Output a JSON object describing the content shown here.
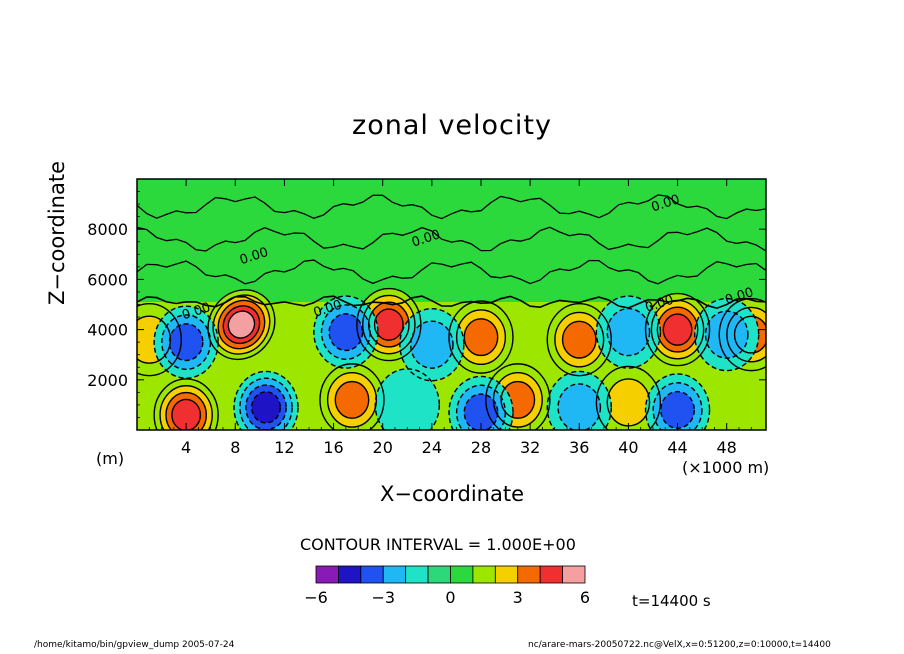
{
  "chart_data": {
    "type": "heatmap",
    "title": "zonal velocity",
    "xlabel": "X−coordinate",
    "ylabel": "Z−coordinate",
    "x_unit_label": "(×1000 m)",
    "y_unit_label": "(m)",
    "xlim": [
      0,
      51.2
    ],
    "ylim": [
      0,
      10000
    ],
    "x_ticks": [
      4,
      8,
      12,
      16,
      20,
      24,
      28,
      32,
      36,
      40,
      44,
      48
    ],
    "y_ticks": [
      2000,
      4000,
      6000,
      8000
    ],
    "contour_interval_label": "CONTOUR INTERVAL = 1.000E+00",
    "contour_labels": [
      "0.00"
    ],
    "colorbar": {
      "ticks": [
        -6,
        -3,
        0,
        3,
        6
      ],
      "tick_labels": [
        "−6",
        "−3",
        "0",
        "3",
        "6"
      ],
      "colors": [
        "#8a1ab5",
        "#1f13c6",
        "#1f52f0",
        "#1fb8f5",
        "#1fe3c6",
        "#2bd97a",
        "#2bd93c",
        "#9de600",
        "#f5cf00",
        "#f56a00",
        "#f03030",
        "#f5a0a0"
      ]
    },
    "features": [
      {
        "x": 8.5,
        "z": 4200,
        "value": 5
      },
      {
        "x": 4,
        "z": 600,
        "value": 4
      },
      {
        "x": 20.5,
        "z": 4200,
        "value": 4
      },
      {
        "x": 44,
        "z": 4000,
        "value": 4
      },
      {
        "x": 28,
        "z": 3700,
        "value": 3
      },
      {
        "x": 17.5,
        "z": 1200,
        "value": 3
      },
      {
        "x": 36,
        "z": 3600,
        "value": 3
      },
      {
        "x": 31,
        "z": 1200,
        "value": 3
      },
      {
        "x": 40,
        "z": 1100,
        "value": 2
      },
      {
        "x": 1,
        "z": 3600,
        "value": 2
      },
      {
        "x": 50,
        "z": 3800,
        "value": 3
      },
      {
        "x": 10.5,
        "z": 900,
        "value": -4
      },
      {
        "x": 4,
        "z": 3500,
        "value": -3
      },
      {
        "x": 17,
        "z": 3900,
        "value": -3
      },
      {
        "x": 28,
        "z": 700,
        "value": -3
      },
      {
        "x": 44,
        "z": 800,
        "value": -3
      },
      {
        "x": 36,
        "z": 900,
        "value": -2
      },
      {
        "x": 48,
        "z": 3800,
        "value": -2
      },
      {
        "x": 24,
        "z": 3400,
        "value": -2
      },
      {
        "x": 40,
        "z": 3900,
        "value": -2
      },
      {
        "x": 22,
        "z": 1000,
        "value": -1
      }
    ],
    "upper_layer_value": 0,
    "lower_background_value": 1
  },
  "time_label": "t=14400 s",
  "footer_left": "/home/kitamo/bin/gpview_dump  2005-07-24",
  "footer_right": "nc/arare-mars-20050722.nc@VelX,x=0:51200,z=0:10000,t=14400"
}
